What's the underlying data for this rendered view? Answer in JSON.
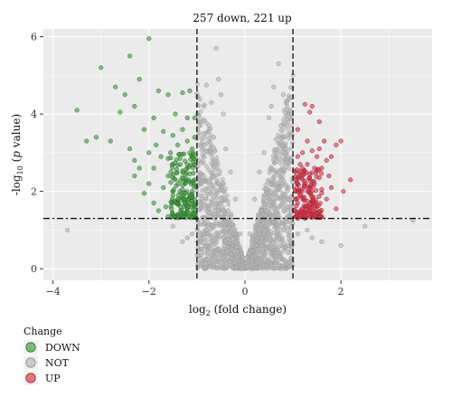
{
  "chart_data": {
    "type": "scatter",
    "title": "257 down, 221 up",
    "xlabel": {
      "prefix": "log",
      "sub": "2",
      "suffix": " (fold change)"
    },
    "ylabel": {
      "prefix": "-log",
      "sub": "10",
      "open": " (",
      "italic": "p",
      "suffix": " value)"
    },
    "xlim": [
      -4.2,
      3.9
    ],
    "ylim": [
      -0.3,
      6.2
    ],
    "x_ticks": [
      -4,
      -2,
      0,
      2
    ],
    "y_ticks": [
      0,
      2,
      4,
      6
    ],
    "grid": true,
    "background": "#ebebeb",
    "thresholds": {
      "fold_change": [
        -1,
        1
      ],
      "p_value_line": 1.3
    },
    "summary": {
      "down": 257,
      "up": 221
    },
    "legend": {
      "title": "Change",
      "placement": "bottom-left",
      "items": [
        {
          "name": "DOWN",
          "color": "#3e9a3e"
        },
        {
          "name": "NOT",
          "color": "#b5b5b5"
        },
        {
          "name": "UP",
          "color": "#d9364a"
        }
      ]
    },
    "series": [
      {
        "name": "DOWN",
        "color": "#3e9a3e",
        "points": [
          [
            -2.0,
            5.95
          ],
          [
            -2.4,
            5.5
          ],
          [
            -3.0,
            5.2
          ],
          [
            -3.5,
            4.1
          ],
          [
            -3.1,
            3.4
          ],
          [
            -2.8,
            3.3
          ],
          [
            -3.3,
            3.3
          ],
          [
            -2.5,
            4.5
          ],
          [
            -2.3,
            4.2
          ],
          [
            -1.8,
            4.6
          ],
          [
            -1.6,
            4.5
          ],
          [
            -1.3,
            4.55
          ],
          [
            -1.15,
            4.6
          ],
          [
            -1.05,
            3.9
          ],
          [
            -1.9,
            3.9
          ],
          [
            -2.1,
            3.6
          ],
          [
            -2.6,
            4.05
          ],
          [
            -2.0,
            3.0
          ],
          [
            -2.3,
            2.8
          ],
          [
            -1.7,
            3.55
          ],
          [
            -1.3,
            3.6
          ],
          [
            -1.2,
            3.9
          ],
          [
            -1.05,
            3.4
          ],
          [
            -1.4,
            3.2
          ],
          [
            -2.7,
            4.7
          ],
          [
            -2.2,
            4.9
          ],
          [
            -1.9,
            2.6
          ],
          [
            -1.6,
            2.4
          ],
          [
            -2.0,
            2.2
          ],
          [
            -1.25,
            2.2
          ],
          [
            -1.1,
            2.0
          ],
          [
            -1.5,
            1.9
          ],
          [
            -1.05,
            1.6
          ],
          [
            -1.3,
            1.45
          ],
          [
            -1.15,
            1.35
          ],
          [
            -1.8,
            1.5
          ],
          [
            -1.4,
            1.7
          ],
          [
            -1.2,
            2.6
          ],
          [
            -1.1,
            2.9
          ],
          [
            -1.5,
            2.7
          ],
          [
            -1.7,
            2.1
          ],
          [
            -2.1,
            1.95
          ],
          [
            -2.3,
            2.4
          ],
          [
            -1.6,
            1.35
          ],
          [
            -1.9,
            1.7
          ],
          [
            -1.05,
            2.3
          ],
          [
            -1.2,
            1.55
          ],
          [
            -1.35,
            2.85
          ],
          [
            -1.1,
            3.1
          ],
          [
            -1.45,
            4.0
          ],
          [
            -1.75,
            2.9
          ],
          [
            -2.4,
            3.1
          ],
          [
            -1.55,
            3.0
          ],
          [
            -1.25,
            1.8
          ],
          [
            -1.15,
            2.45
          ],
          [
            -1.05,
            1.45
          ],
          [
            -1.4,
            1.4
          ],
          [
            -1.1,
            1.75
          ],
          [
            -1.3,
            2.05
          ],
          [
            -1.65,
            1.6
          ],
          [
            -2.2,
            2.6
          ],
          [
            -1.85,
            3.2
          ],
          [
            -1.5,
            3.45
          ],
          [
            -1.05,
            2.7
          ],
          [
            -1.2,
            3.3
          ],
          [
            -1.3,
            1.35
          ],
          [
            -1.15,
            1.9
          ],
          [
            -1.45,
            2.3
          ],
          [
            -1.6,
            2.85
          ],
          [
            -1.1,
            1.4
          ]
        ]
      },
      {
        "name": "NOT",
        "color": "#b5b5b5",
        "points": [
          [
            -3.7,
            1.0
          ],
          [
            -0.6,
            5.7
          ],
          [
            -0.55,
            4.9
          ],
          [
            -0.8,
            4.75
          ],
          [
            -0.5,
            4.5
          ],
          [
            -0.7,
            4.3
          ],
          [
            -0.45,
            4.0
          ],
          [
            0.7,
            5.3
          ],
          [
            0.6,
            4.7
          ],
          [
            0.8,
            4.5
          ],
          [
            0.55,
            4.2
          ],
          [
            0.9,
            4.0
          ],
          [
            0.5,
            3.9
          ],
          [
            -1.1,
            0.9
          ],
          [
            -1.2,
            0.8
          ],
          [
            -0.9,
            0.5
          ],
          [
            1.1,
            0.9
          ],
          [
            1.3,
            1.0
          ],
          [
            1.4,
            0.8
          ],
          [
            2.0,
            0.6
          ],
          [
            2.5,
            1.1
          ],
          [
            3.5,
            1.25
          ],
          [
            1.6,
            0.7
          ],
          [
            -1.5,
            1.1
          ],
          [
            -1.3,
            0.7
          ],
          [
            0.9,
            0.6
          ],
          [
            -0.75,
            3.7
          ],
          [
            0.75,
            3.7
          ],
          [
            -0.65,
            3.4
          ],
          [
            0.65,
            3.35
          ],
          [
            -0.4,
            3.1
          ],
          [
            0.4,
            3.0
          ],
          [
            -0.85,
            3.2
          ],
          [
            0.85,
            3.1
          ],
          [
            -0.3,
            2.5
          ],
          [
            0.3,
            2.5
          ],
          [
            -0.95,
            2.8
          ],
          [
            0.95,
            2.8
          ],
          [
            -0.2,
            1.8
          ],
          [
            0.2,
            1.8
          ],
          [
            -0.55,
            2.2
          ],
          [
            0.55,
            2.2
          ],
          [
            -0.35,
            1.5
          ],
          [
            0.35,
            1.5
          ],
          [
            -0.1,
            0.9
          ],
          [
            0.1,
            0.9
          ],
          [
            -0.6,
            1.2
          ],
          [
            0.6,
            1.2
          ],
          [
            -0.25,
            0.6
          ],
          [
            0.25,
            0.6
          ],
          [
            0.0,
            0.15
          ],
          [
            -0.05,
            0.3
          ],
          [
            0.05,
            0.3
          ],
          [
            -0.15,
            0.45
          ],
          [
            0.15,
            0.45
          ],
          [
            -0.8,
            1.0
          ],
          [
            0.8,
            1.0
          ],
          [
            -0.45,
            0.8
          ],
          [
            0.45,
            0.8
          ],
          [
            -0.9,
            1.8
          ],
          [
            0.9,
            1.8
          ],
          [
            -0.7,
            2.5
          ],
          [
            0.7,
            2.5
          ]
        ]
      },
      {
        "name": "UP",
        "color": "#d9364a",
        "points": [
          [
            1.25,
            4.25
          ],
          [
            1.4,
            4.2
          ],
          [
            1.35,
            4.05
          ],
          [
            1.55,
            3.8
          ],
          [
            1.1,
            3.6
          ],
          [
            1.3,
            3.3
          ],
          [
            1.9,
            3.2
          ],
          [
            2.0,
            3.3
          ],
          [
            1.7,
            2.8
          ],
          [
            1.5,
            2.9
          ],
          [
            2.2,
            2.3
          ],
          [
            1.8,
            2.1
          ],
          [
            1.6,
            2.6
          ],
          [
            1.2,
            2.3
          ],
          [
            1.05,
            2.0
          ],
          [
            1.3,
            2.0
          ],
          [
            1.45,
            2.2
          ],
          [
            1.1,
            1.7
          ],
          [
            1.25,
            1.6
          ],
          [
            1.35,
            1.45
          ],
          [
            1.15,
            1.4
          ],
          [
            1.05,
            1.5
          ],
          [
            1.5,
            1.6
          ],
          [
            1.7,
            1.8
          ],
          [
            1.9,
            1.55
          ],
          [
            2.05,
            2.0
          ],
          [
            1.6,
            1.35
          ],
          [
            1.4,
            1.85
          ],
          [
            1.2,
            2.6
          ],
          [
            1.1,
            2.9
          ],
          [
            1.3,
            2.7
          ],
          [
            1.55,
            3.1
          ],
          [
            1.2,
            3.0
          ],
          [
            1.75,
            2.4
          ],
          [
            1.05,
            1.35
          ],
          [
            1.25,
            1.3
          ],
          [
            1.4,
            1.4
          ],
          [
            1.1,
            2.2
          ],
          [
            1.35,
            2.45
          ],
          [
            1.6,
            2.05
          ],
          [
            1.15,
            1.9
          ],
          [
            1.05,
            2.5
          ],
          [
            1.3,
            1.75
          ],
          [
            1.5,
            1.45
          ],
          [
            1.2,
            1.5
          ],
          [
            1.45,
            2.6
          ],
          [
            1.8,
            2.9
          ],
          [
            1.65,
            3.3
          ],
          [
            1.1,
            1.3
          ],
          [
            1.35,
            1.95
          ],
          [
            1.25,
            2.15
          ],
          [
            1.05,
            1.8
          ],
          [
            1.55,
            2.35
          ],
          [
            1.15,
            2.7
          ],
          [
            1.4,
            3.05
          ]
        ]
      }
    ]
  }
}
